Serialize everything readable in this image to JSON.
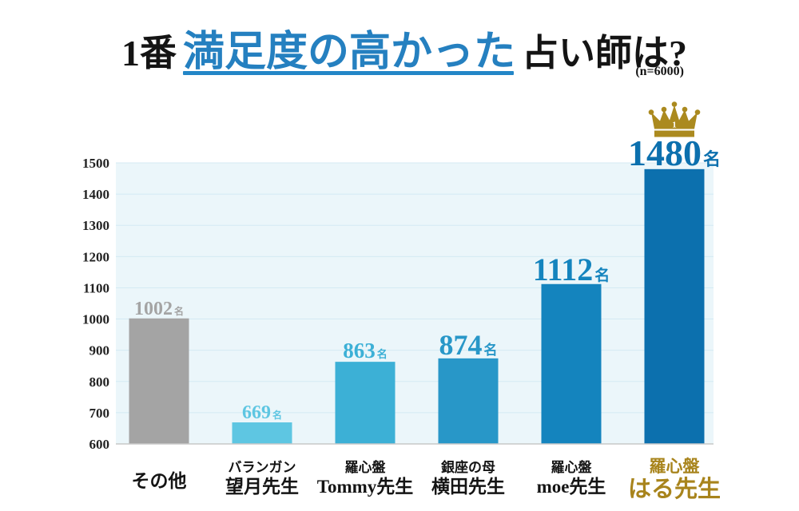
{
  "colors": {
    "title_text": "#141414",
    "title_highlight": "#2580c0",
    "underline": "#2386c7",
    "plot_background": "#ebf6fa",
    "gridline": "#d4eaf3",
    "axis_line": "#c8c8c8",
    "tick_text": "#222222",
    "crown": "#ab8a1f",
    "crown_text": "#ffffff"
  },
  "chart_data": {
    "type": "bar",
    "title": {
      "prefix": "1番",
      "highlight": "満足度の高かった",
      "suffix": "占い師は?"
    },
    "subtitle": "(n=6000)",
    "categories": [
      "その他",
      "望月先生",
      "Tommy先生",
      "横田先生",
      "moe先生",
      "はる先生"
    ],
    "category_prefixes": [
      "",
      "バランガン",
      "羅心盤",
      "銀座の母",
      "羅心盤",
      "羅心盤"
    ],
    "values": [
      1002,
      669,
      863,
      874,
      1112,
      1480
    ],
    "unit": "名",
    "ylim": [
      600,
      1500
    ],
    "yticks": [
      600,
      700,
      800,
      900,
      1000,
      1100,
      1200,
      1300,
      1400,
      1500
    ],
    "grid": true,
    "rank_badge": "1",
    "rank_icon": "crown-icon",
    "bar_colors": [
      "#a4a4a4",
      "#5ec6e2",
      "#3cb0d6",
      "#2897c8",
      "#1484be",
      "#0c70ae"
    ],
    "label_colors": [
      "#141414",
      "#141414",
      "#141414",
      "#141414",
      "#141414",
      "#a8841c"
    ]
  }
}
